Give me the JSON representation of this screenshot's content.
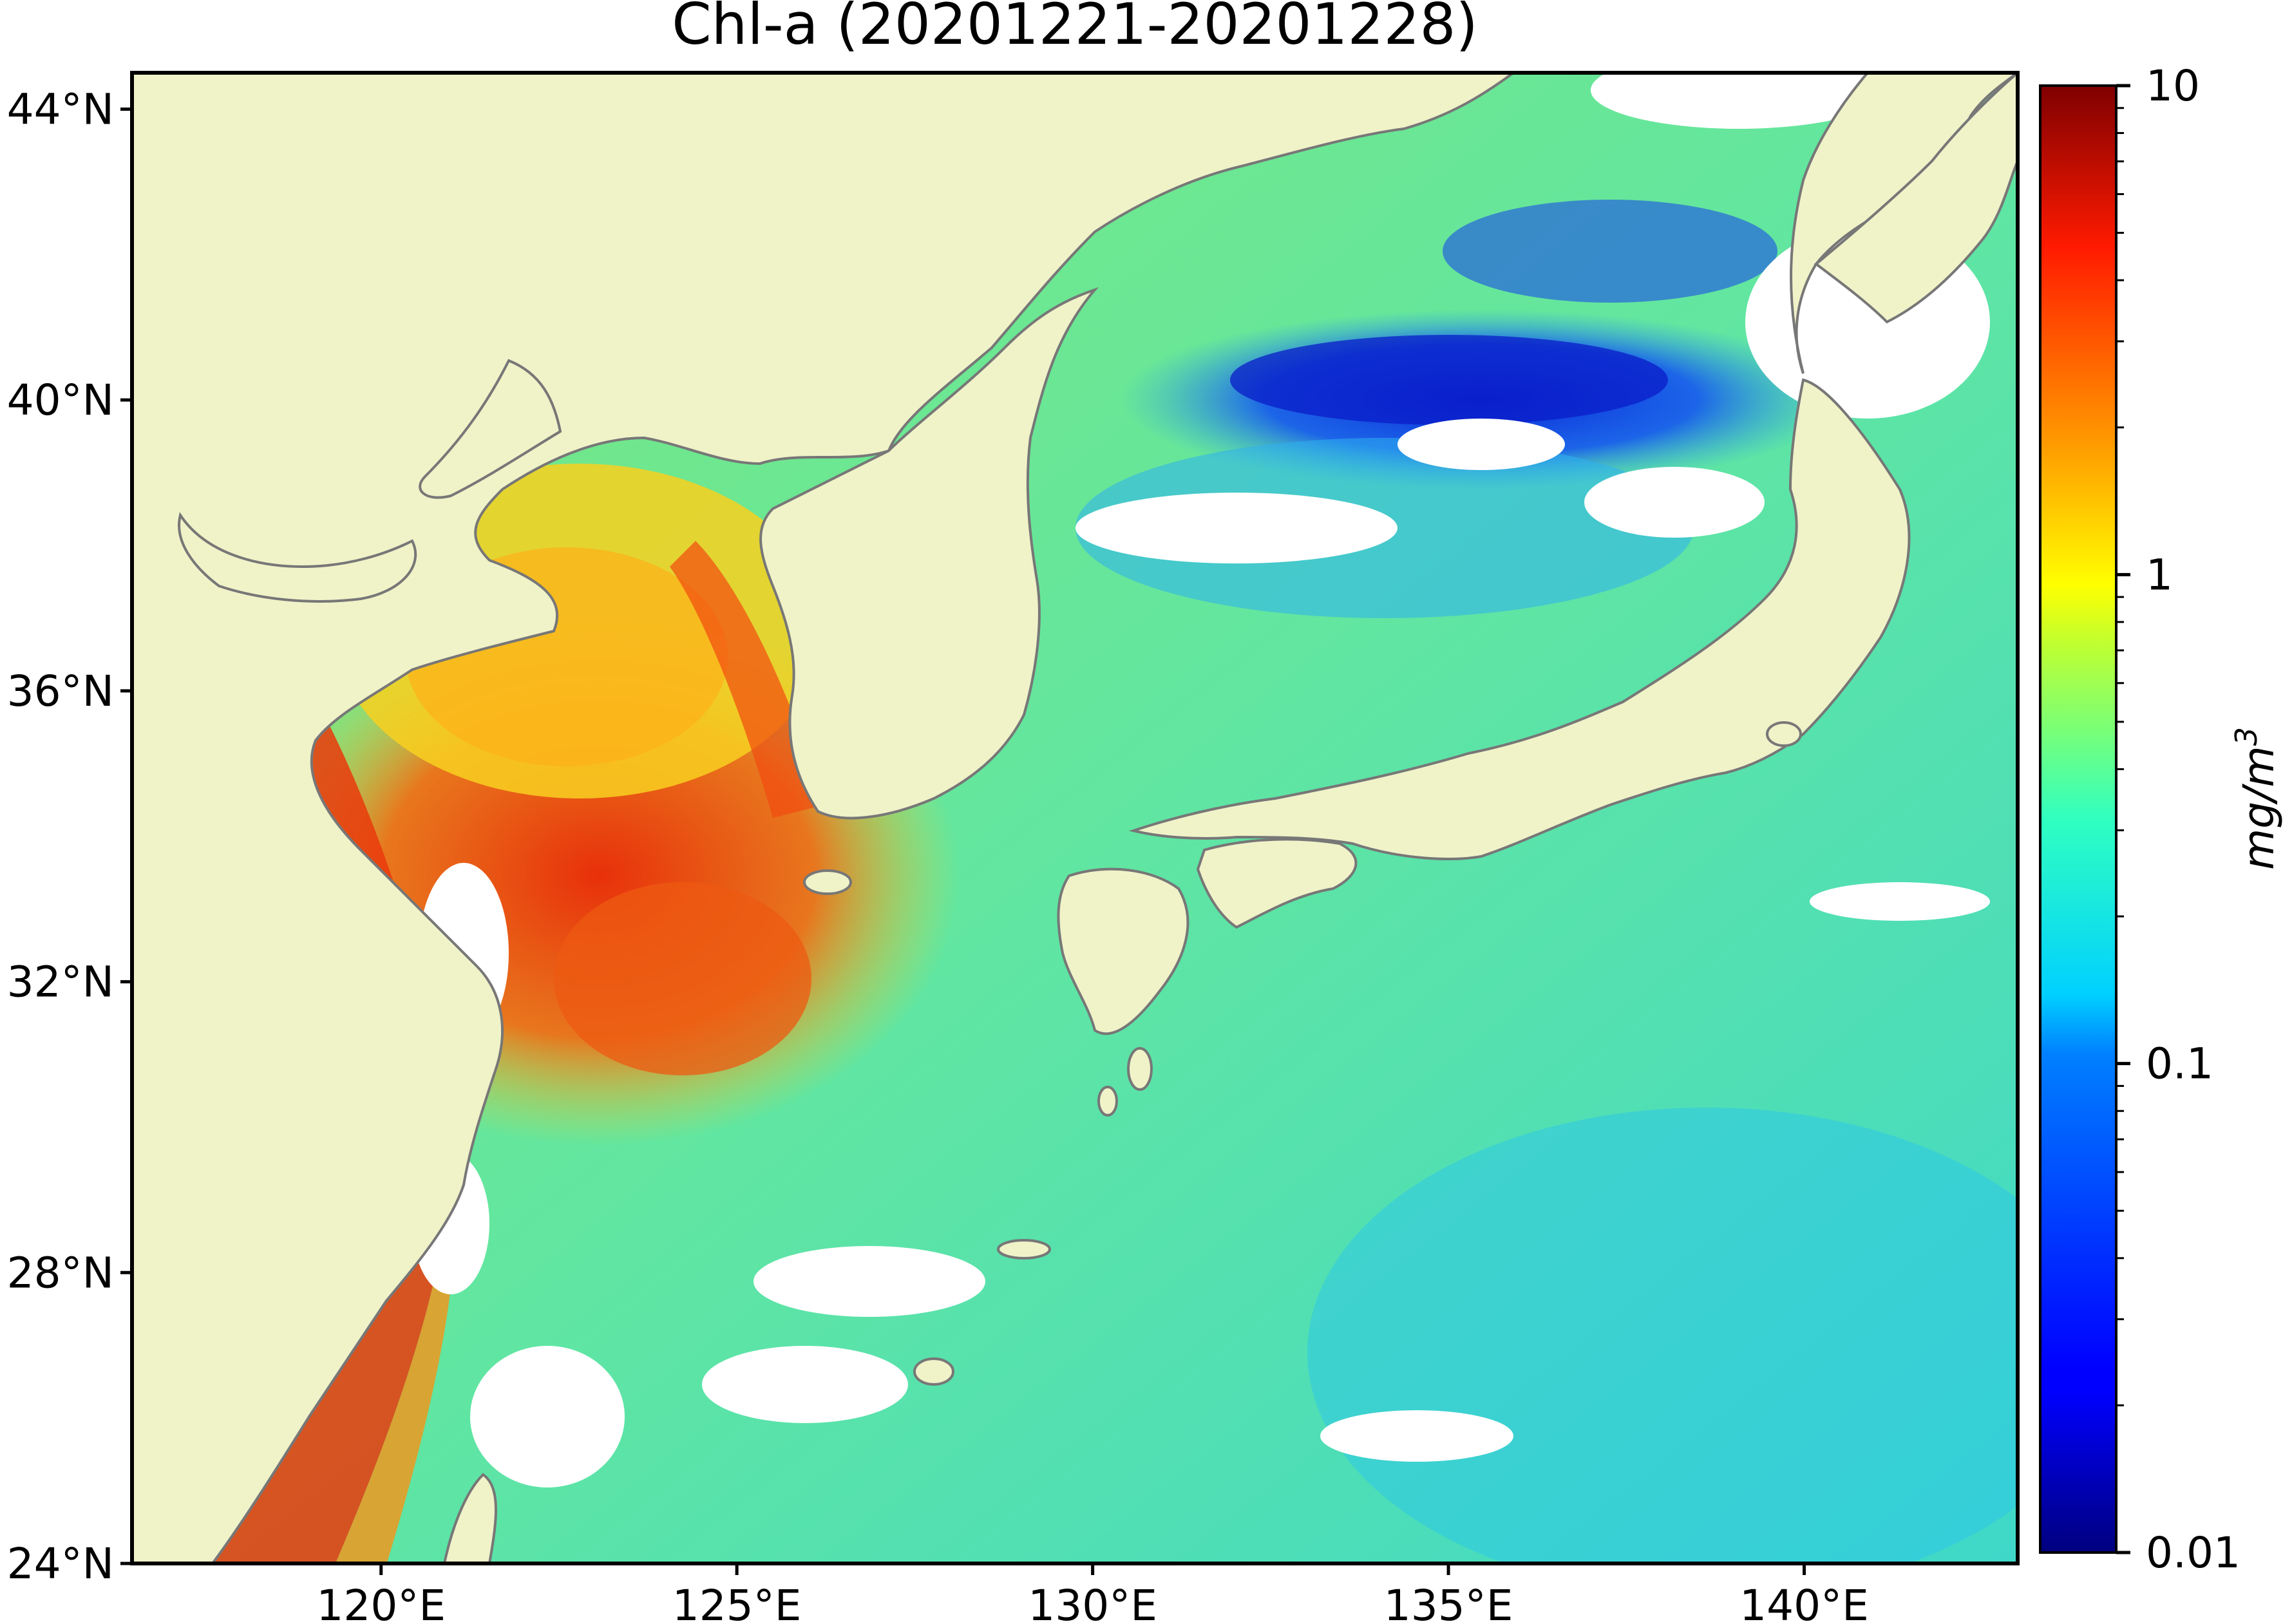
{
  "title": "Chl-a (20201221-20201228)",
  "map": {
    "lon_range": [
      116.5,
      143.0
    ],
    "lat_range": [
      24.0,
      44.5
    ],
    "lat_ticks": [
      {
        "value": 44,
        "label": "44°N"
      },
      {
        "value": 40,
        "label": "40°N"
      },
      {
        "value": 36,
        "label": "36°N"
      },
      {
        "value": 32,
        "label": "32°N"
      },
      {
        "value": 28,
        "label": "28°N"
      },
      {
        "value": 24,
        "label": "24°N"
      }
    ],
    "lon_ticks": [
      {
        "value": 120,
        "label": "120°E"
      },
      {
        "value": 125,
        "label": "125°E"
      },
      {
        "value": 130,
        "label": "130°E"
      },
      {
        "value": 135,
        "label": "135°E"
      },
      {
        "value": 140,
        "label": "140°E"
      }
    ],
    "colors": {
      "land": "#f0f2c8",
      "coastline": "#777777",
      "no_data": "#ffffff"
    }
  },
  "colorbar": {
    "scale": "log",
    "range": [
      0.01,
      10
    ],
    "colormap": "jet",
    "unit_main": "mg/m",
    "unit_exp": "3",
    "major_ticks": [
      {
        "value": 0.01,
        "label": "0.01"
      },
      {
        "value": 0.1,
        "label": "0.1"
      },
      {
        "value": 1,
        "label": "1"
      },
      {
        "value": 10,
        "label": "10"
      }
    ]
  }
}
